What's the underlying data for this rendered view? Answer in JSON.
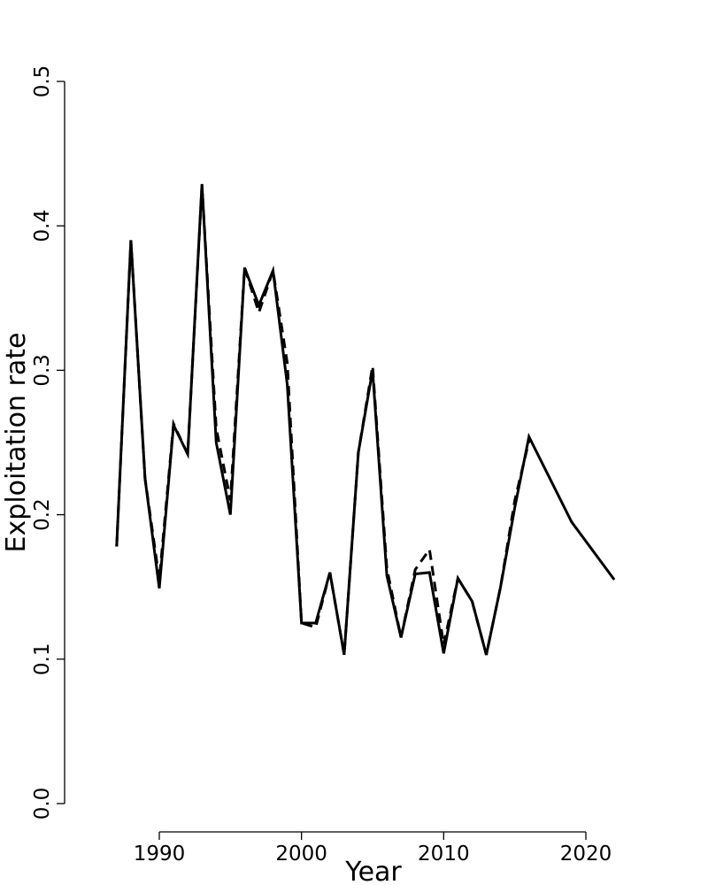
{
  "chart_data": {
    "type": "line",
    "title": "",
    "xlabel": "Year",
    "ylabel": "Exploitation rate",
    "xlim": [
      1987,
      2022
    ],
    "ylim": [
      0,
      0.5
    ],
    "x_ticks": [
      1990,
      2000,
      2010,
      2020
    ],
    "y_ticks": [
      0.0,
      0.1,
      0.2,
      0.3,
      0.4,
      0.5
    ],
    "y_tick_labels": [
      "0.0",
      "0.1",
      "0.2",
      "0.3",
      "0.4",
      "0.5"
    ],
    "grid": false,
    "legend": "none",
    "series": [
      {
        "style": "solid",
        "color": "#000000",
        "x": [
          1987,
          1988,
          1989,
          1990,
          1991,
          1992,
          1993,
          1994,
          1995,
          1996,
          1997,
          1998,
          1999,
          2000,
          2001,
          2002,
          2003,
          2004,
          2005,
          2006,
          2007,
          2008,
          2009,
          2010,
          2011,
          2012,
          2013,
          2014,
          2015,
          2016,
          2019,
          2022
        ],
        "y": [
          0.178,
          0.39,
          0.225,
          0.149,
          0.262,
          0.242,
          0.429,
          0.25,
          0.2,
          0.371,
          0.345,
          0.369,
          0.29,
          0.125,
          0.125,
          0.16,
          0.103,
          0.243,
          0.3,
          0.158,
          0.115,
          0.159,
          0.16,
          0.104,
          0.156,
          0.14,
          0.103,
          0.15,
          0.205,
          0.254,
          0.195,
          0.155
        ]
      },
      {
        "style": "dashed",
        "color": "#000000",
        "x": [
          1987,
          1988,
          1989,
          1990,
          1991,
          1992,
          1993,
          1994,
          1995,
          1996,
          1997,
          1998,
          1999,
          2000,
          2001,
          2002,
          2003,
          2004,
          2005,
          2006,
          2007,
          2008,
          2009,
          2010,
          2011,
          2012,
          2013,
          2014,
          2015,
          2016
        ],
        "y": [
          0.178,
          0.39,
          0.225,
          0.155,
          0.263,
          0.242,
          0.428,
          0.26,
          0.21,
          0.371,
          0.34,
          0.369,
          0.305,
          0.125,
          0.122,
          0.16,
          0.103,
          0.243,
          0.303,
          0.163,
          0.115,
          0.162,
          0.176,
          0.11,
          0.156,
          0.14,
          0.103,
          0.15,
          0.21,
          0.251
        ]
      }
    ]
  }
}
